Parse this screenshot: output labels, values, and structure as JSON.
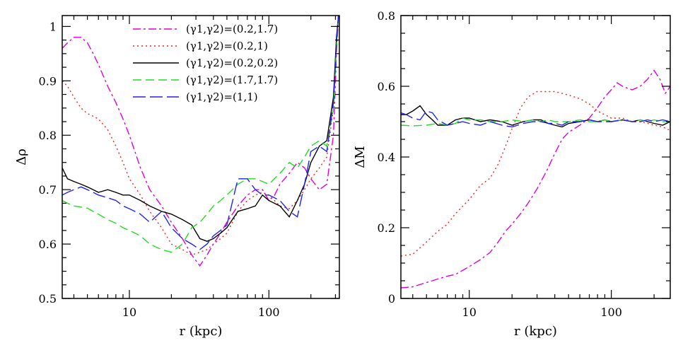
{
  "chart_data": [
    {
      "type": "line",
      "xlabel": "r (kpc)",
      "ylabel": "Δρ",
      "xscale": "log",
      "xlim": [
        3.3,
        320
      ],
      "ylim": [
        0.5,
        1.02
      ],
      "xticks": [
        10,
        100
      ],
      "xtick_labels": [
        "10",
        "100"
      ],
      "yticks": [
        0.5,
        0.6,
        0.7,
        0.8,
        0.9,
        1
      ],
      "ytick_labels": [
        "0.5",
        "0.6",
        "0.7",
        "0.8",
        "0.9",
        "1"
      ],
      "legend": "top",
      "series": [
        {
          "name": "(γ1,γ2)=(0.2,1.7)",
          "color": "#dd00dd",
          "dash": "11,4,3,4",
          "x": [
            3.3,
            3.6,
            4.0,
            4.5,
            5.0,
            5.5,
            6.0,
            7.0,
            8.0,
            9.0,
            10,
            12,
            14,
            17,
            20,
            24,
            28,
            32,
            36,
            40,
            45,
            50,
            60,
            70,
            80,
            90,
            100,
            110,
            120,
            140,
            160,
            180,
            200,
            230,
            260,
            290,
            305,
            315
          ],
          "y": [
            0.96,
            0.97,
            0.98,
            0.98,
            0.97,
            0.95,
            0.93,
            0.89,
            0.86,
            0.83,
            0.8,
            0.74,
            0.7,
            0.67,
            0.64,
            0.61,
            0.58,
            0.56,
            0.58,
            0.6,
            0.62,
            0.64,
            0.67,
            0.69,
            0.7,
            0.7,
            0.68,
            0.69,
            0.71,
            0.73,
            0.75,
            0.74,
            0.72,
            0.7,
            0.71,
            0.8,
            0.95,
            1.02
          ]
        },
        {
          "name": "(γ1,γ2)=(0.2,1)",
          "color": "#ee2222",
          "dash": "2,4",
          "x": [
            3.3,
            3.6,
            4.0,
            4.5,
            5.0,
            5.5,
            6.0,
            7.0,
            8.0,
            9.0,
            10,
            12,
            14,
            17,
            20,
            24,
            28,
            32,
            36,
            40,
            45,
            50,
            60,
            70,
            80,
            90,
            100,
            120,
            140,
            160,
            180,
            200,
            230,
            260,
            290,
            305,
            315
          ],
          "y": [
            0.9,
            0.89,
            0.87,
            0.85,
            0.84,
            0.835,
            0.83,
            0.81,
            0.78,
            0.75,
            0.72,
            0.69,
            0.66,
            0.63,
            0.6,
            0.59,
            0.58,
            0.585,
            0.59,
            0.6,
            0.61,
            0.62,
            0.66,
            0.68,
            0.69,
            0.695,
            0.69,
            0.67,
            0.665,
            0.68,
            0.7,
            0.72,
            0.74,
            0.76,
            0.85,
            0.97,
            1.02
          ]
        },
        {
          "name": "(γ1,γ2)=(0.2,0.2)",
          "color": "#000000",
          "dash": "",
          "x": [
            3.3,
            3.6,
            4.0,
            4.5,
            5.0,
            5.5,
            6.0,
            7.0,
            8.0,
            9.0,
            10,
            12,
            14,
            17,
            20,
            24,
            28,
            32,
            36,
            40,
            45,
            50,
            60,
            70,
            80,
            90,
            100,
            120,
            140,
            160,
            180,
            200,
            230,
            260,
            290,
            305,
            315
          ],
          "y": [
            0.74,
            0.72,
            0.715,
            0.71,
            0.705,
            0.7,
            0.695,
            0.7,
            0.695,
            0.69,
            0.69,
            0.68,
            0.67,
            0.66,
            0.655,
            0.645,
            0.635,
            0.61,
            0.605,
            0.61,
            0.62,
            0.63,
            0.66,
            0.665,
            0.67,
            0.69,
            0.68,
            0.67,
            0.65,
            0.68,
            0.71,
            0.75,
            0.78,
            0.79,
            0.87,
            0.98,
            1.02
          ]
        },
        {
          "name": "(γ1,γ2)=(1.7,1.7)",
          "color": "#22dd22",
          "dash": "12,6",
          "x": [
            3.3,
            3.6,
            4.0,
            4.5,
            5.0,
            5.5,
            6.0,
            7.0,
            8.0,
            9.0,
            10,
            12,
            14,
            17,
            20,
            24,
            28,
            32,
            36,
            40,
            45,
            50,
            60,
            70,
            80,
            90,
            100,
            120,
            140,
            160,
            180,
            200,
            230,
            260,
            290,
            305,
            315
          ],
          "y": [
            0.68,
            0.675,
            0.67,
            0.668,
            0.666,
            0.66,
            0.655,
            0.645,
            0.638,
            0.63,
            0.625,
            0.615,
            0.6,
            0.59,
            0.585,
            0.6,
            0.63,
            0.64,
            0.655,
            0.67,
            0.68,
            0.69,
            0.71,
            0.72,
            0.72,
            0.715,
            0.71,
            0.73,
            0.75,
            0.74,
            0.76,
            0.78,
            0.79,
            0.78,
            0.85,
            0.96,
            1.02
          ]
        },
        {
          "name": "(γ1,γ2)=(1,1)",
          "color": "#2222ee",
          "dash": "18,6",
          "x": [
            3.3,
            3.6,
            4.0,
            4.5,
            5.0,
            5.5,
            6.0,
            7.0,
            8.0,
            9.0,
            10,
            12,
            14,
            17,
            20,
            24,
            28,
            32,
            36,
            40,
            45,
            50,
            60,
            70,
            80,
            90,
            100,
            120,
            140,
            160,
            180,
            200,
            230,
            260,
            290,
            305,
            315
          ],
          "y": [
            0.69,
            0.695,
            0.7,
            0.705,
            0.7,
            0.695,
            0.69,
            0.685,
            0.68,
            0.67,
            0.665,
            0.655,
            0.64,
            0.66,
            0.63,
            0.61,
            0.6,
            0.59,
            0.6,
            0.615,
            0.625,
            0.635,
            0.72,
            0.72,
            0.7,
            0.69,
            0.69,
            0.68,
            0.66,
            0.65,
            0.71,
            0.77,
            0.78,
            0.77,
            0.86,
            0.97,
            1.02
          ]
        }
      ]
    },
    {
      "type": "line",
      "xlabel": "r (kpc)",
      "ylabel": "ΔM",
      "xscale": "log",
      "xlim": [
        3.3,
        260
      ],
      "ylim": [
        0,
        0.8
      ],
      "xticks": [
        10,
        100
      ],
      "xtick_labels": [
        "10",
        "100"
      ],
      "yticks": [
        0,
        0.2,
        0.4,
        0.6,
        0.8
      ],
      "ytick_labels": [
        "0",
        "0.2",
        "0.4",
        "0.6",
        "0.8"
      ],
      "series": [
        {
          "color": "#dd00dd",
          "dash": "11,4,3,4",
          "x": [
            3.3,
            4,
            5,
            6,
            7,
            8,
            10,
            12,
            14,
            16,
            18,
            20,
            23,
            26,
            30,
            35,
            40,
            45,
            50,
            60,
            70,
            80,
            90,
            100,
            110,
            120,
            140,
            160,
            180,
            200,
            220,
            240,
            260
          ],
          "y": [
            0.03,
            0.033,
            0.045,
            0.055,
            0.063,
            0.068,
            0.09,
            0.11,
            0.13,
            0.16,
            0.19,
            0.21,
            0.24,
            0.27,
            0.31,
            0.36,
            0.41,
            0.45,
            0.47,
            0.49,
            0.51,
            0.54,
            0.57,
            0.59,
            0.61,
            0.6,
            0.59,
            0.6,
            0.62,
            0.645,
            0.62,
            0.58,
            0.6
          ]
        },
        {
          "color": "#ee2222",
          "dash": "2,4",
          "x": [
            3.3,
            4,
            5,
            6,
            7,
            8,
            10,
            12,
            14,
            16,
            18,
            20,
            23,
            26,
            30,
            35,
            40,
            45,
            50,
            60,
            70,
            80,
            100,
            120,
            140,
            160,
            180,
            200,
            230,
            260
          ],
          "y": [
            0.12,
            0.125,
            0.16,
            0.19,
            0.21,
            0.24,
            0.28,
            0.32,
            0.34,
            0.38,
            0.43,
            0.48,
            0.54,
            0.57,
            0.585,
            0.585,
            0.585,
            0.58,
            0.575,
            0.565,
            0.55,
            0.53,
            0.51,
            0.51,
            0.5,
            0.5,
            0.495,
            0.49,
            0.485,
            0.475
          ]
        },
        {
          "color": "#000000",
          "dash": "",
          "x": [
            3.3,
            3.6,
            4.0,
            4.5,
            5.0,
            5.5,
            6.0,
            7.0,
            8.0,
            9.0,
            10,
            12,
            14,
            17,
            20,
            24,
            28,
            32,
            36,
            40,
            45,
            50,
            60,
            70,
            80,
            90,
            100,
            120,
            140,
            160,
            180,
            200,
            230,
            260
          ],
          "y": [
            0.52,
            0.52,
            0.53,
            0.545,
            0.52,
            0.505,
            0.49,
            0.49,
            0.505,
            0.51,
            0.51,
            0.5,
            0.505,
            0.5,
            0.49,
            0.5,
            0.505,
            0.505,
            0.495,
            0.49,
            0.485,
            0.495,
            0.5,
            0.505,
            0.5,
            0.505,
            0.5,
            0.505,
            0.5,
            0.505,
            0.5,
            0.495,
            0.49,
            0.5
          ]
        },
        {
          "color": "#22dd22",
          "dash": "12,6",
          "x": [
            3.3,
            4,
            5,
            6,
            7,
            8,
            9,
            10,
            12,
            14,
            17,
            20,
            24,
            28,
            32,
            36,
            40,
            45,
            50,
            60,
            70,
            80,
            90,
            100,
            120,
            140,
            160,
            180,
            200,
            230,
            260
          ],
          "y": [
            0.49,
            0.488,
            0.49,
            0.495,
            0.49,
            0.495,
            0.51,
            0.505,
            0.505,
            0.5,
            0.5,
            0.505,
            0.5,
            0.505,
            0.5,
            0.505,
            0.5,
            0.5,
            0.5,
            0.505,
            0.5,
            0.5,
            0.505,
            0.5,
            0.505,
            0.5,
            0.505,
            0.5,
            0.505,
            0.5,
            0.5
          ]
        },
        {
          "color": "#2222ee",
          "dash": "18,6",
          "x": [
            3.3,
            3.6,
            4.0,
            4.5,
            5.0,
            5.5,
            6.0,
            7.0,
            8.0,
            9.0,
            10,
            12,
            14,
            17,
            20,
            24,
            28,
            32,
            36,
            40,
            45,
            50,
            60,
            70,
            80,
            90,
            100,
            120,
            140,
            160,
            180,
            200,
            230,
            260
          ],
          "y": [
            0.525,
            0.52,
            0.51,
            0.505,
            0.53,
            0.525,
            0.505,
            0.49,
            0.495,
            0.5,
            0.495,
            0.49,
            0.5,
            0.49,
            0.485,
            0.495,
            0.5,
            0.5,
            0.495,
            0.495,
            0.49,
            0.5,
            0.5,
            0.505,
            0.5,
            0.5,
            0.5,
            0.505,
            0.5,
            0.5,
            0.505,
            0.5,
            0.505,
            0.5
          ]
        }
      ]
    }
  ]
}
